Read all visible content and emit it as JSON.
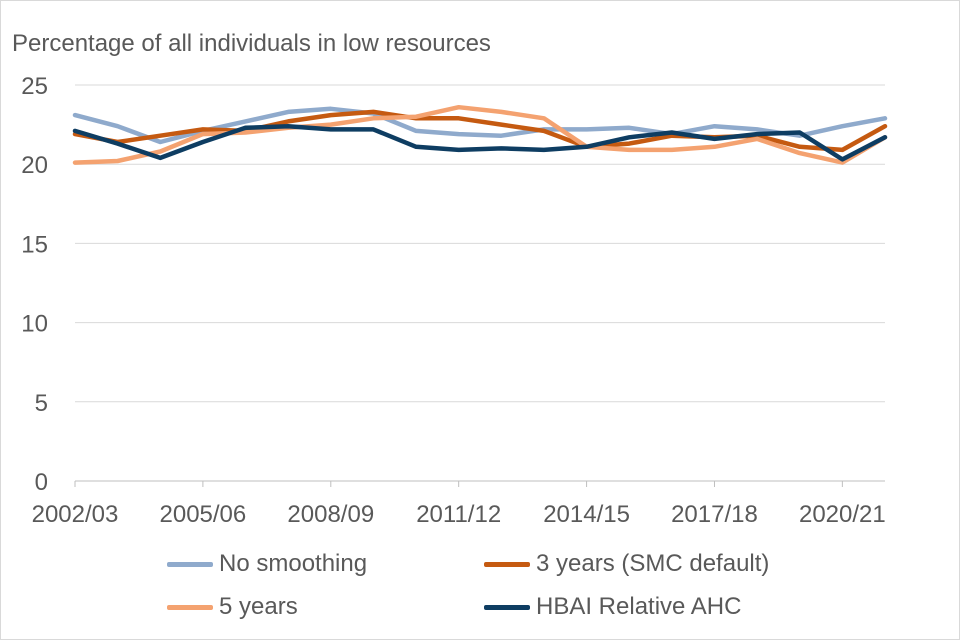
{
  "chart_data": {
    "type": "line",
    "ylabel": "Percentage of all individuals in low resources",
    "xlabel": "",
    "ylim": [
      0,
      25
    ],
    "yticks": [
      0,
      5,
      10,
      15,
      20,
      25
    ],
    "tick_labels": [
      "2002/03",
      "2005/06",
      "2008/09",
      "2011/12",
      "2014/15",
      "2017/18",
      "2020/21"
    ],
    "categories": [
      "2002/03",
      "2003/04",
      "2004/05",
      "2005/06",
      "2006/07",
      "2007/08",
      "2008/09",
      "2009/10",
      "2010/11",
      "2011/12",
      "2012/13",
      "2013/14",
      "2014/15",
      "2015/16",
      "2016/17",
      "2017/18",
      "2018/19",
      "2019/20",
      "2020/21",
      "2021/22"
    ],
    "series": [
      {
        "name": "No smoothing",
        "color": "#8faacc",
        "values": [
          23.1,
          22.4,
          21.4,
          22.1,
          22.7,
          23.3,
          23.5,
          23.2,
          22.1,
          21.9,
          21.8,
          22.2,
          22.2,
          22.3,
          21.9,
          22.4,
          22.2,
          21.8,
          22.4,
          22.9
        ]
      },
      {
        "name": "3 years (SMC default)",
        "color": "#c55a11",
        "values": [
          21.9,
          21.4,
          21.8,
          22.2,
          22.1,
          22.7,
          23.1,
          23.3,
          22.9,
          22.9,
          22.5,
          22.1,
          21.1,
          21.3,
          21.8,
          21.7,
          21.8,
          21.1,
          20.9,
          22.4
        ]
      },
      {
        "name": "5 years",
        "color": "#f4a270",
        "values": [
          20.1,
          20.2,
          20.8,
          21.9,
          22.0,
          22.3,
          22.5,
          22.9,
          23.0,
          23.6,
          23.3,
          22.9,
          21.1,
          20.9,
          20.9,
          21.1,
          21.6,
          20.7,
          20.1,
          21.7
        ]
      },
      {
        "name": "HBAI Relative AHC",
        "color": "#0e3d62",
        "values": [
          22.1,
          21.3,
          20.4,
          21.4,
          22.3,
          22.4,
          22.2,
          22.2,
          21.1,
          20.9,
          21.0,
          20.9,
          21.1,
          21.7,
          22.0,
          21.6,
          21.9,
          22.0,
          20.3,
          21.7
        ]
      }
    ],
    "legend": {
      "items": [
        "No smoothing",
        "3 years (SMC default)",
        "5 years",
        "HBAI Relative AHC"
      ]
    }
  }
}
